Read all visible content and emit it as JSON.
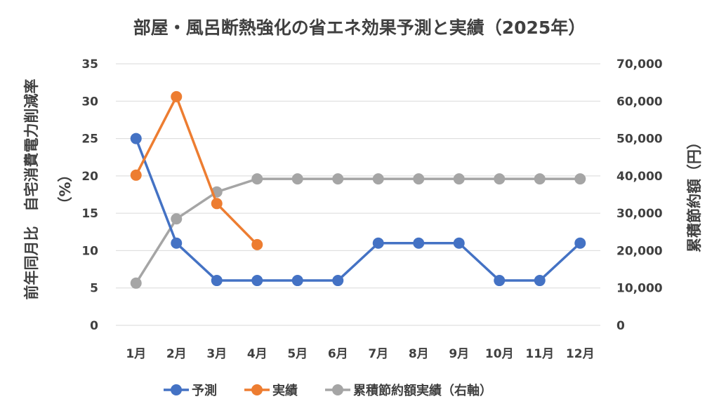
{
  "chart_data": {
    "type": "line",
    "title": "部屋・風呂断熱強化の省エネ効果予測と実績（2025年）",
    "categories": [
      "1月",
      "2月",
      "3月",
      "4月",
      "5月",
      "6月",
      "7月",
      "8月",
      "9月",
      "10月",
      "11月",
      "12月"
    ],
    "ylabel_left_line1": "前年同月比　自宅消費電力削減率",
    "ylabel_left_line2": "（%）",
    "ylabel_right": "累積節約額（円）",
    "ylim_left": [
      0,
      35
    ],
    "ylim_right": [
      0,
      70000
    ],
    "left_ticks": [
      "0",
      "5",
      "10",
      "15",
      "20",
      "25",
      "30",
      "35"
    ],
    "right_ticks": [
      "0",
      "10,000",
      "20,000",
      "30,000",
      "40,000",
      "50,000",
      "60,000",
      "70,000"
    ],
    "grid": true,
    "legend_position": "bottom",
    "series": [
      {
        "name": "予測",
        "axis": "left",
        "color": "#4472c4",
        "values": [
          25,
          11,
          6,
          6,
          6,
          6,
          11,
          11,
          11,
          6,
          6,
          11
        ]
      },
      {
        "name": "実績",
        "axis": "left",
        "color": "#ed7d31",
        "values": [
          20.1,
          30.6,
          16.3,
          10.8,
          null,
          null,
          null,
          null,
          null,
          null,
          null,
          null
        ]
      },
      {
        "name": "累積節約額実績（右軸）",
        "axis": "right",
        "color": "#a5a5a5",
        "values": [
          11300,
          28500,
          35700,
          39200,
          39200,
          39200,
          39200,
          39200,
          39200,
          39200,
          39200,
          39200
        ]
      }
    ]
  }
}
